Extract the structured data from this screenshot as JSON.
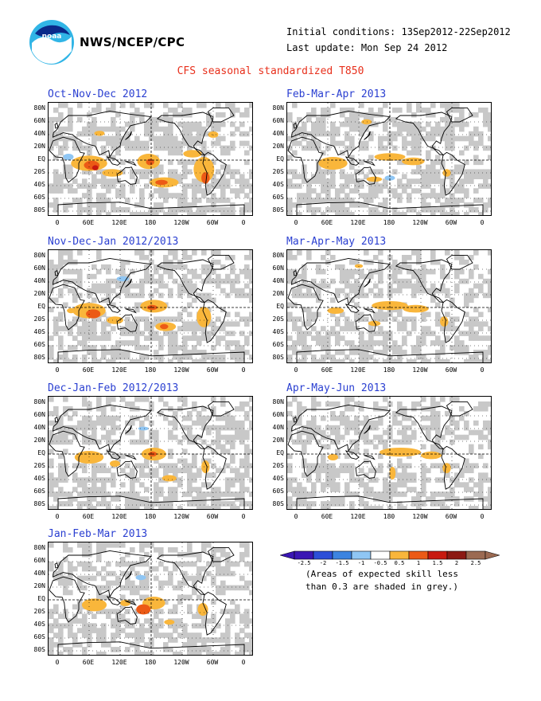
{
  "header": {
    "org": "NWS/NCEP/CPC",
    "initial_conditions": "Initial conditions: 13Sep2012-22Sep2012",
    "last_update": "Last update: Mon Sep 24 2012",
    "title": "CFS seasonal standardized T850"
  },
  "lat_labels": [
    "80N",
    "60N",
    "40N",
    "20N",
    "EQ",
    "20S",
    "40S",
    "60S",
    "80S"
  ],
  "lon_labels": [
    "0",
    "60E",
    "120E",
    "180",
    "120W",
    "60W",
    "0"
  ],
  "panels": [
    {
      "title": "Oct-Nov-Dec 2012"
    },
    {
      "title": "Feb-Mar-Apr 2013"
    },
    {
      "title": "Nov-Dec-Jan 2012/2013"
    },
    {
      "title": "Mar-Apr-May 2013"
    },
    {
      "title": "Dec-Jan-Feb 2012/2013"
    },
    {
      "title": "Apr-May-Jun 2013"
    },
    {
      "title": "Jan-Feb-Mar 2013"
    }
  ],
  "legend": {
    "labels": [
      "-2.5",
      "-2",
      "-1.5",
      "-1",
      "-0.5",
      "0.5",
      "1",
      "1.5",
      "2",
      "2.5"
    ],
    "colors": [
      "#3a16b4",
      "#2c4fd8",
      "#3c84e0",
      "#8fc6f4",
      "#ffffff",
      "#f9b63b",
      "#ec5a16",
      "#c81a10",
      "#8c1a14",
      "#9b6a52"
    ],
    "note_line1": "(Areas of expected skill less",
    "note_line2": "than 0.3 are shaded in grey.)"
  },
  "colors": {
    "grey": "#c8c8c8",
    "orange": "#f9b63b",
    "red": "#ec5a16",
    "darkred": "#c81a10",
    "lightblue": "#8fc6f4",
    "title_blue": "#2a3fd1",
    "title_red": "#e8301c"
  }
}
